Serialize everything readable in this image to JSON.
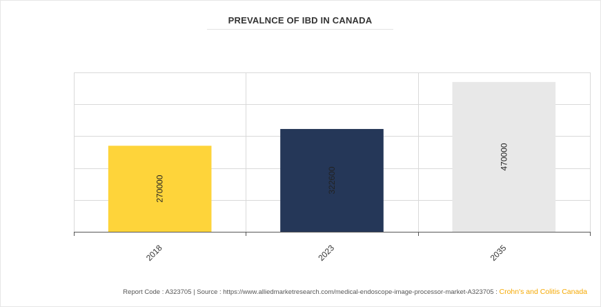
{
  "chart_data": {
    "type": "bar",
    "title": "PREVALNCE OF IBD IN CANADA",
    "categories": [
      "2018",
      "2023",
      "2035"
    ],
    "values": [
      270000,
      322600,
      470000
    ],
    "value_labels": [
      "270000",
      "322600",
      "470000"
    ],
    "bar_colors": [
      "#fed43a",
      "#253758",
      "#e8e8e8"
    ],
    "ylim": [
      0,
      500000
    ],
    "grid": true,
    "y_tick_labels_shown": false
  },
  "footer": {
    "report_code": "Report Code : A323705",
    "separator": "|",
    "source": "Source : https://www.alliedmarketresearch.com/medical-endoscope-image-processor-market-A323705 :",
    "brand": "Crohn's and Colitis Canada"
  },
  "colors": {
    "grid": "#d9d9d9",
    "axis": "#555555",
    "brand_accent": "#f5a800"
  }
}
